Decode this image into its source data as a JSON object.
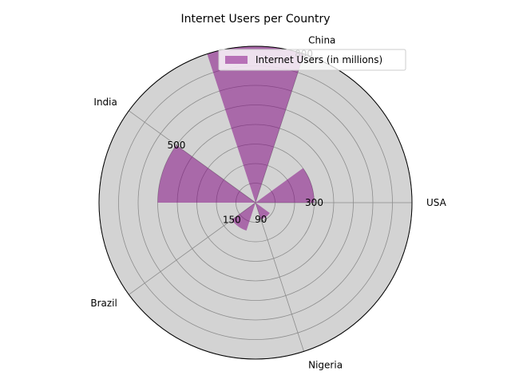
{
  "chart_data": {
    "type": "polar-bar",
    "title": "Internet Users per Country",
    "categories": [
      "USA",
      "China",
      "India",
      "Brazil",
      "Nigeria"
    ],
    "series": [
      {
        "name": "Internet Users (in millions)",
        "values": [
          300,
          800,
          500,
          150,
          90
        ],
        "color": "#800080",
        "alpha": 0.5
      }
    ],
    "radial_range": [
      0,
      800
    ],
    "grid": true,
    "legend": "top-right",
    "background": "#d3d3d3",
    "value_labels": [
      "300",
      "800",
      "500",
      "150",
      "90"
    ]
  }
}
